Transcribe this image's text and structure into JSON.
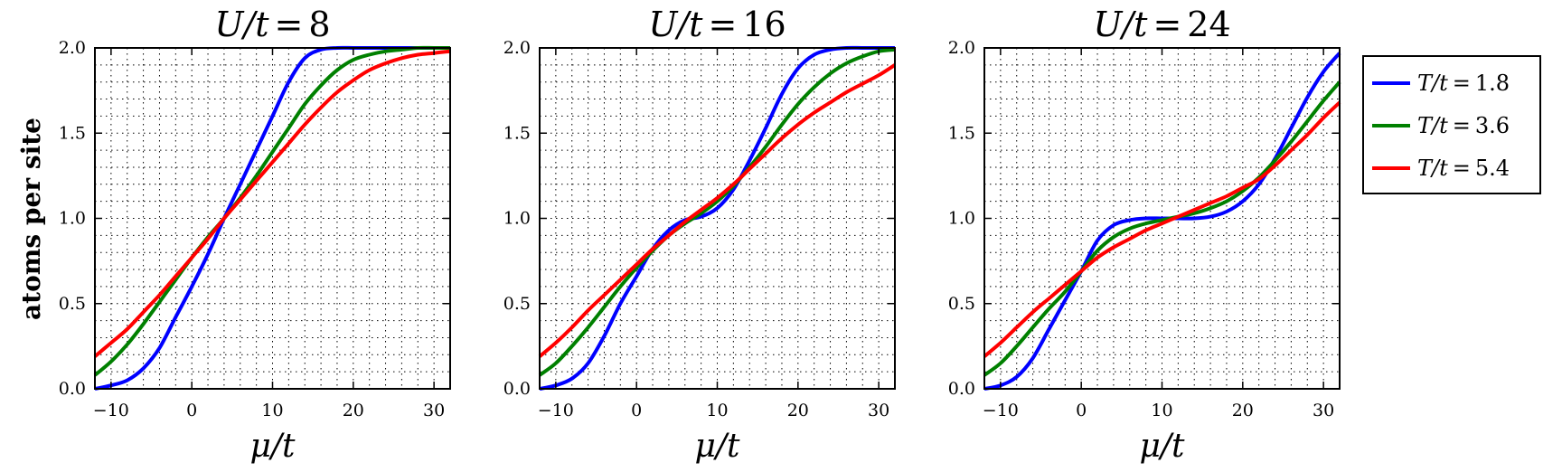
{
  "chart_data": {
    "type": "line",
    "ylabel": "atoms per site",
    "legend": {
      "placement": "right",
      "entries": [
        {
          "label": "T/t = 1.8",
          "color": "#0000ff"
        },
        {
          "label": "T/t = 3.6",
          "color": "#008000"
        },
        {
          "label": "T/t = 5.4",
          "color": "#ff0000"
        }
      ]
    },
    "grid": true,
    "panels": [
      {
        "title": "U/t = 8",
        "xlabel": "μ/t",
        "xlim": [
          -12,
          32
        ],
        "ylim": [
          0,
          2
        ],
        "xticks": [
          "−10",
          "0",
          "10",
          "20",
          "30"
        ],
        "yticks": [
          "0.0",
          "0.5",
          "1.0",
          "1.5",
          "2.0"
        ],
        "x": [
          -12,
          -10,
          -8,
          -6,
          -4,
          -2,
          0,
          2,
          4,
          6,
          8,
          10,
          12,
          14,
          16,
          18,
          20,
          22,
          24,
          26,
          28,
          30,
          32
        ],
        "series": [
          {
            "name": "T/t = 1.8",
            "color": "#0000ff",
            "values": [
              0.0,
              0.02,
              0.05,
              0.12,
              0.24,
              0.42,
              0.6,
              0.79,
              1.0,
              1.2,
              1.4,
              1.6,
              1.8,
              1.94,
              1.99,
              2.0,
              2.0,
              2.0,
              2.0,
              2.0,
              2.0,
              2.0,
              2.0
            ]
          },
          {
            "name": "T/t = 3.6",
            "color": "#008000",
            "values": [
              0.08,
              0.16,
              0.26,
              0.38,
              0.51,
              0.64,
              0.77,
              0.89,
              1.0,
              1.12,
              1.25,
              1.39,
              1.53,
              1.67,
              1.78,
              1.87,
              1.93,
              1.96,
              1.98,
              1.99,
              2.0,
              2.0,
              2.0
            ]
          },
          {
            "name": "T/t = 5.4",
            "color": "#ff0000",
            "values": [
              0.19,
              0.27,
              0.35,
              0.45,
              0.55,
              0.66,
              0.77,
              0.88,
              1.0,
              1.11,
              1.22,
              1.33,
              1.44,
              1.55,
              1.65,
              1.74,
              1.81,
              1.87,
              1.91,
              1.94,
              1.96,
              1.97,
              1.98
            ]
          }
        ]
      },
      {
        "title": "U/t = 16",
        "xlabel": "μ/t",
        "xlim": [
          -12,
          32
        ],
        "ylim": [
          0,
          2
        ],
        "xticks": [
          "−10",
          "0",
          "10",
          "20",
          "30"
        ],
        "yticks": [
          "0.0",
          "0.5",
          "1.0",
          "1.5",
          "2.0"
        ],
        "x": [
          -12,
          -10,
          -8,
          -6,
          -4,
          -2,
          0,
          2,
          4,
          6,
          8,
          10,
          12,
          14,
          16,
          18,
          20,
          22,
          24,
          26,
          28,
          30,
          32
        ],
        "series": [
          {
            "name": "T/t = 1.8",
            "color": "#0000ff",
            "values": [
              0.0,
              0.02,
              0.06,
              0.15,
              0.31,
              0.5,
              0.66,
              0.82,
              0.93,
              0.99,
              1.01,
              1.06,
              1.17,
              1.34,
              1.53,
              1.73,
              1.88,
              1.96,
              1.99,
              2.0,
              2.0,
              2.0,
              2.0
            ]
          },
          {
            "name": "T/t = 3.6",
            "color": "#008000",
            "values": [
              0.08,
              0.15,
              0.25,
              0.36,
              0.48,
              0.6,
              0.71,
              0.81,
              0.9,
              0.97,
              1.03,
              1.1,
              1.19,
              1.3,
              1.42,
              1.55,
              1.67,
              1.77,
              1.85,
              1.91,
              1.95,
              1.98,
              1.99
            ]
          },
          {
            "name": "T/t = 5.4",
            "color": "#ff0000",
            "values": [
              0.19,
              0.27,
              0.36,
              0.46,
              0.55,
              0.64,
              0.73,
              0.82,
              0.9,
              0.98,
              1.05,
              1.12,
              1.2,
              1.29,
              1.38,
              1.47,
              1.55,
              1.62,
              1.68,
              1.74,
              1.79,
              1.84,
              1.9
            ]
          }
        ]
      },
      {
        "title": "U/t = 24",
        "xlabel": "μ/t",
        "xlim": [
          -12,
          32
        ],
        "ylim": [
          0,
          2
        ],
        "xticks": [
          "−10",
          "0",
          "10",
          "20",
          "30"
        ],
        "yticks": [
          "0.0",
          "0.5",
          "1.0",
          "1.5",
          "2.0"
        ],
        "x": [
          -12,
          -10,
          -8,
          -6,
          -4,
          -2,
          0,
          2,
          4,
          6,
          8,
          10,
          12,
          14,
          16,
          18,
          20,
          22,
          24,
          26,
          28,
          30,
          32
        ],
        "series": [
          {
            "name": "T/t = 1.8",
            "color": "#0000ff",
            "values": [
              0.0,
              0.02,
              0.07,
              0.18,
              0.35,
              0.52,
              0.69,
              0.87,
              0.96,
              0.99,
              1.0,
              1.0,
              1.0,
              1.0,
              1.01,
              1.04,
              1.1,
              1.2,
              1.35,
              1.53,
              1.71,
              1.86,
              1.97
            ]
          },
          {
            "name": "T/t = 3.6",
            "color": "#008000",
            "values": [
              0.08,
              0.15,
              0.25,
              0.36,
              0.47,
              0.57,
              0.69,
              0.81,
              0.89,
              0.94,
              0.97,
              0.99,
              1.01,
              1.03,
              1.06,
              1.1,
              1.16,
              1.24,
              1.34,
              1.45,
              1.57,
              1.69,
              1.8
            ]
          },
          {
            "name": "T/t = 5.4",
            "color": "#ff0000",
            "values": [
              0.19,
              0.27,
              0.36,
              0.45,
              0.53,
              0.61,
              0.69,
              0.77,
              0.83,
              0.88,
              0.93,
              0.97,
              1.01,
              1.05,
              1.09,
              1.13,
              1.18,
              1.23,
              1.31,
              1.4,
              1.49,
              1.59,
              1.68
            ]
          }
        ]
      }
    ]
  }
}
